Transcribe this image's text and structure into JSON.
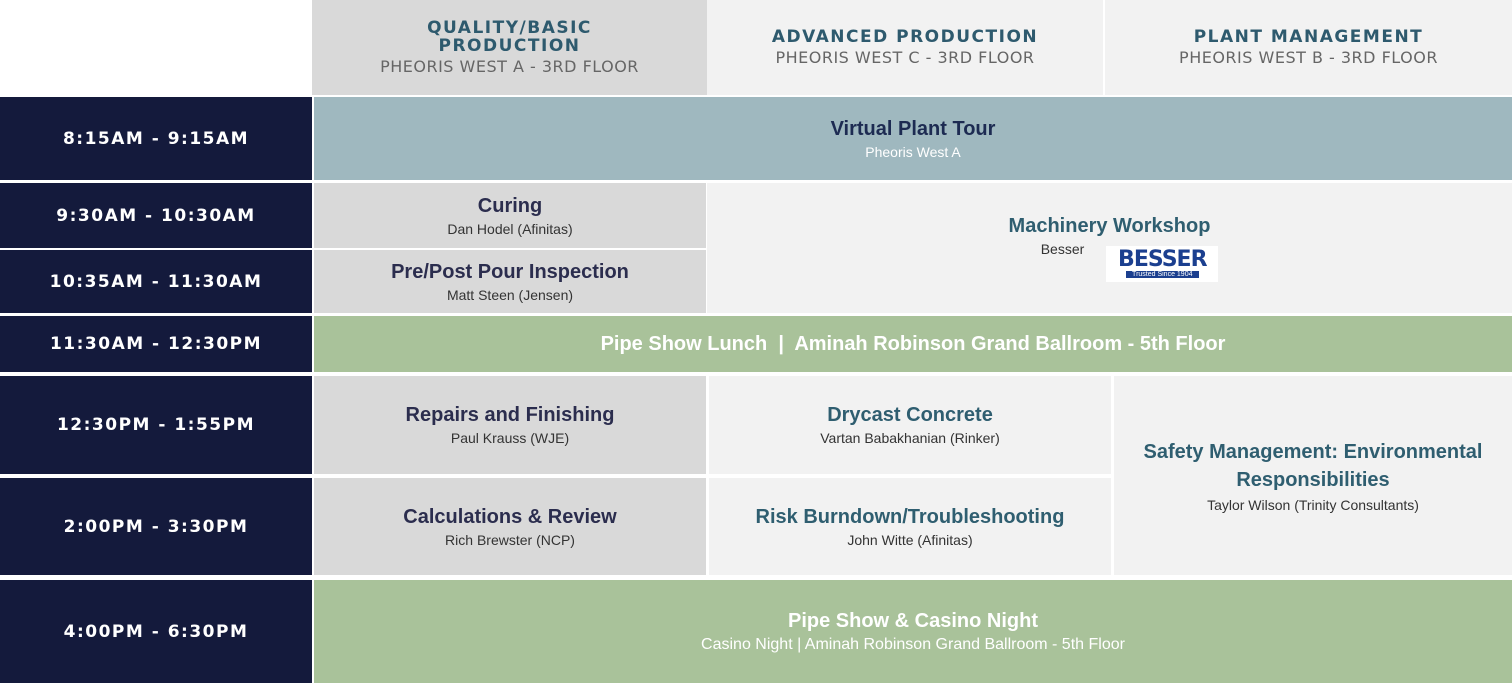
{
  "header": {
    "columns": [
      {
        "title": "QUALITY/BASIC PRODUCTION",
        "location": "PHEORIS WEST A - 3RD FLOOR"
      },
      {
        "title": "ADVANCED PRODUCTION",
        "location": "PHEORIS WEST C - 3RD FLOOR"
      },
      {
        "title": "PLANT MANAGEMENT",
        "location": "PHEORIS WEST B - 3RD FLOOR"
      }
    ]
  },
  "times": [
    "8:15AM - 9:15AM",
    "9:30AM - 10:30AM",
    "10:35AM - 11:30AM",
    "11:30AM - 12:30PM",
    "12:30PM - 1:55PM",
    "2:00PM - 3:30PM",
    "4:00PM - 6:30PM"
  ],
  "sessions": [
    {
      "title": "Virtual Plant Tour",
      "detail": "Pheoris West A"
    },
    {
      "title": "Curing",
      "detail": "Dan Hodel (Afinitas)"
    },
    {
      "title": "Machinery Workshop",
      "detail": "Besser",
      "logo": "BESSER",
      "logo_tagline": "Trusted Since 1904"
    },
    {
      "title": "Pre/Post Pour Inspection",
      "detail": "Matt Steen (Jensen)"
    },
    {
      "title": "Pipe Show Lunch  |  Aminah Robinson Grand Ballroom - 5th Floor"
    },
    {
      "title": "Repairs and Finishing",
      "detail": "Paul Krauss (WJE)"
    },
    {
      "title": "Drycast Concrete",
      "detail": "Vartan Babakhanian (Rinker)"
    },
    {
      "title": "Safety Management: Environmental Responsibilities",
      "detail": "Taylor Wilson (Trinity Consultants)"
    },
    {
      "title": "Calculations & Review",
      "detail": "Rich Brewster (NCP)"
    },
    {
      "title": "Risk Burndown/Troubleshooting",
      "detail": "John Witte (Afinitas)"
    },
    {
      "title": "Pipe Show & Casino Night",
      "detail": "Casino Night | Aminah Robinson Grand Ballroom - 5th Floor"
    }
  ]
}
